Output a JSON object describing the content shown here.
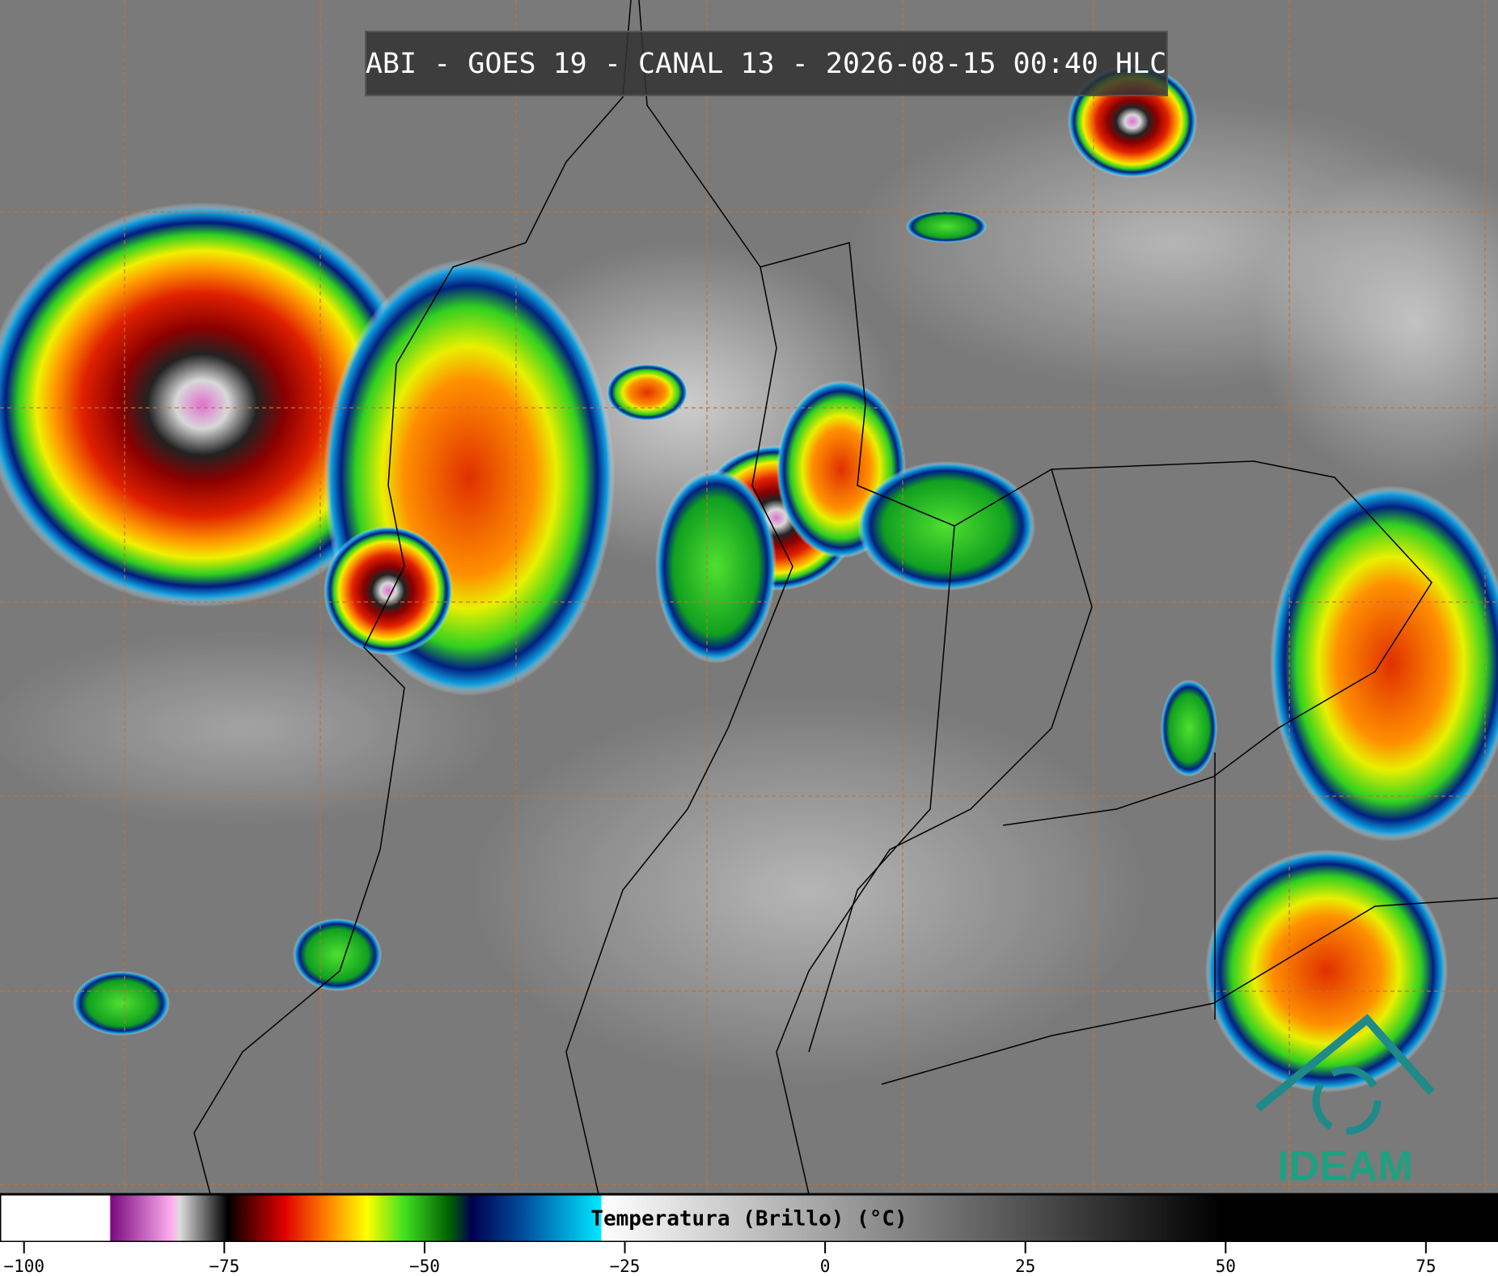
{
  "header": {
    "title": "ABI - GOES 19 - CANAL 13 - 2026-08-15 00:40 HLC"
  },
  "colorbar": {
    "label": "Temperatura (Brillo) (°C)",
    "xlim": [
      -103,
      84
    ],
    "xticks": [
      {
        "value": -100,
        "label": "−100"
      },
      {
        "value": -75,
        "label": "−75"
      },
      {
        "value": -50,
        "label": "−50"
      },
      {
        "value": -25,
        "label": "−25"
      },
      0,
      25,
      50,
      75
    ]
  },
  "logo": {
    "text": "IDEAM"
  }
}
